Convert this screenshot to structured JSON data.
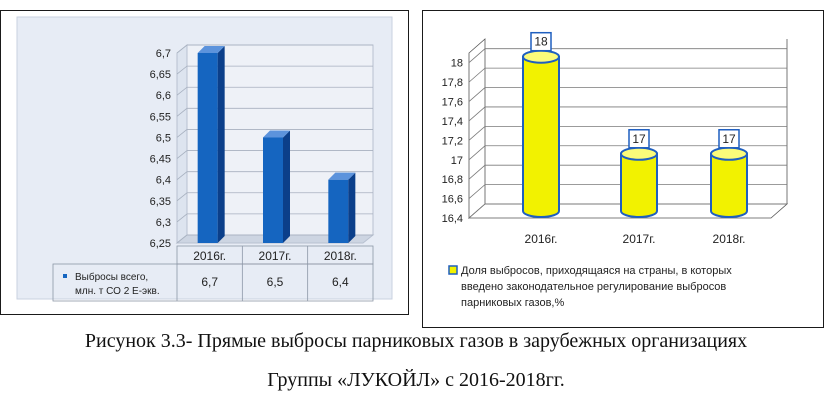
{
  "chart_data": [
    {
      "type": "bar",
      "categories": [
        "2016г.",
        "2017г.",
        "2018г."
      ],
      "series": [
        {
          "name": "Выбросы всего, млн. т СО 2 Е-экв.",
          "values": [
            6.7,
            6.5,
            6.4
          ]
        }
      ],
      "table": {
        "row_label_line1": "Выбросы всего,",
        "row_label_line2": "млн. т СО 2 Е-экв.",
        "values_text": [
          "6,7",
          "6,5",
          "6,4"
        ]
      },
      "y_ticks": [
        "6,25",
        "6,3",
        "6,35",
        "6,4",
        "6,45",
        "6,5",
        "6,55",
        "6,6",
        "6,65",
        "6,7"
      ],
      "ylim": [
        6.25,
        6.7
      ],
      "grid": true,
      "legend": "data-table",
      "colors": {
        "bar": "#1565c0",
        "background": "#e7ecf5"
      }
    },
    {
      "type": "bar",
      "categories": [
        "2016г.",
        "2017г.",
        "2018г."
      ],
      "series": [
        {
          "name": "Доля выбросов, приходящаяся на страны, в которых введено законодательное регулирование выбросов парниковых газов,%",
          "values": [
            18,
            17,
            17
          ]
        }
      ],
      "data_labels": [
        "18",
        "17",
        "17"
      ],
      "legend_lines": [
        "Доля выбросов, приходящаяся на страны, в которых",
        "введено законодательное регулирование выбросов",
        "парниковых газов,%"
      ],
      "y_ticks": [
        "16,4",
        "16,6",
        "16,8",
        "17",
        "17,2",
        "17,4",
        "17,6",
        "17,8",
        "18"
      ],
      "ylim": [
        16.4,
        18.1
      ],
      "grid": true,
      "legend": "bottom",
      "colors": {
        "bar": "#f2f200",
        "bar_outline": "#1f5fbf",
        "background": "#ffffff"
      }
    }
  ],
  "caption": {
    "line1": "Рисунок 3.3- Прямые выбросы парниковых газов в зарубежных организациях",
    "line2": "Группы «ЛУКОЙЛ» с 2016-2018гг."
  }
}
